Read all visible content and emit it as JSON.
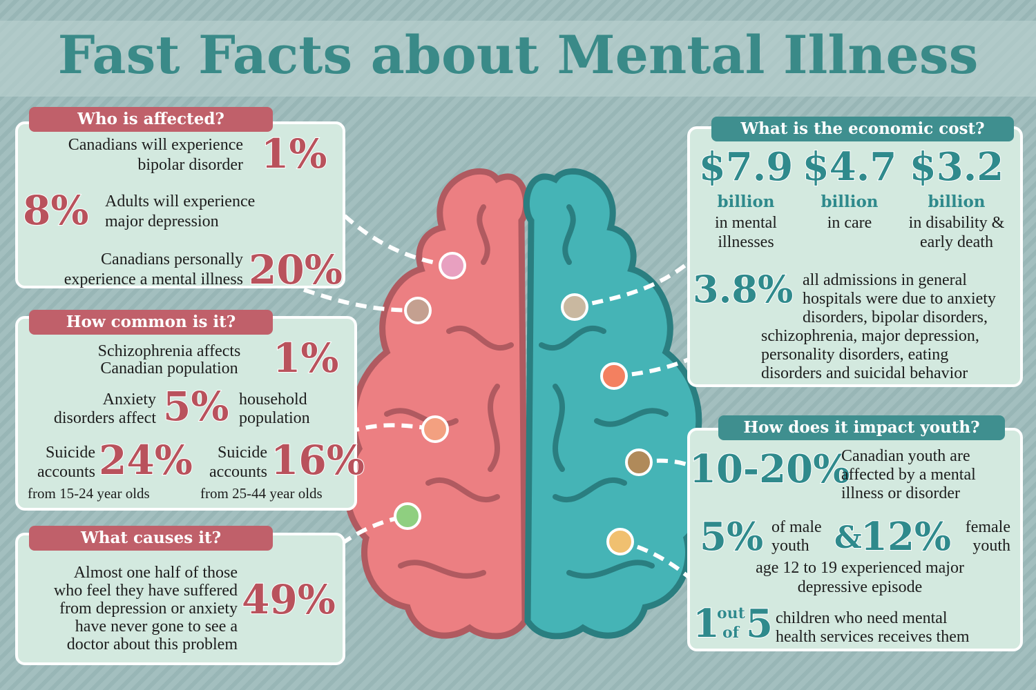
{
  "title": "Fast Facts about Mental Illness",
  "who": {
    "heading": "Who is affected?",
    "facts": [
      {
        "stat": "1%",
        "lines": [
          "Canadians will experience",
          "bipolar disorder"
        ]
      },
      {
        "stat": "8%",
        "lines": [
          "Adults will experience",
          "major depression"
        ]
      },
      {
        "stat": "20%",
        "lines": [
          "Canadians personally",
          "experience a mental illness"
        ]
      }
    ]
  },
  "common": {
    "heading": "How common is it?",
    "facts": [
      {
        "stat": "1%",
        "lines": [
          "Schizophrenia affects",
          "Canadian population"
        ]
      },
      {
        "stat": "5%",
        "before": [
          "Anxiety",
          "disorders affect"
        ],
        "after": [
          "household",
          "population"
        ]
      },
      {
        "stat": "24%",
        "before": [
          "Suicide",
          "accounts"
        ],
        "after": [
          "from 15-24 year olds"
        ]
      },
      {
        "stat": "16%",
        "before": [
          "Suicide",
          "accounts"
        ],
        "after": [
          "from 25-44 year olds"
        ]
      }
    ]
  },
  "causes": {
    "heading": "What causes it?",
    "stat": "49%",
    "lines": [
      "Almost one half  of those",
      "who feel they have suffered",
      "from depression or anxiety",
      "have never gone to see a",
      "doctor about this problem"
    ]
  },
  "cost": {
    "heading": "What is the economic cost?",
    "items": [
      {
        "amount": "$7.9",
        "unit": "billion",
        "lines": [
          "in mental",
          "illnesses"
        ]
      },
      {
        "amount": "$4.7",
        "unit": "billion",
        "lines": [
          "in care"
        ]
      },
      {
        "amount": "$3.2",
        "unit": "billion",
        "lines": [
          "in disability &",
          "early death"
        ]
      }
    ],
    "hospital": {
      "stat": "3.8%",
      "lines": [
        "all admissions in general",
        "hospitals were due to anxiety",
        "disorders, bipolar disorders,",
        "schizophrenia, major depression,",
        "personality disorders, eating",
        "disorders and suicidal behavior"
      ]
    }
  },
  "youth": {
    "heading": "How does it impact youth?",
    "facts": [
      {
        "stat": "10-20%",
        "lines": [
          "Canadian youth are",
          "affected by a mental",
          "illness or disorder"
        ]
      },
      {
        "stat_a": "5%",
        "lines_a": [
          "of male",
          "youth"
        ],
        "joiner": "&",
        "stat_b": "12%",
        "lines_b": [
          "female",
          "youth"
        ],
        "lines_c": [
          "age 12 to 19 experienced major",
          "depressive episode"
        ]
      },
      {
        "num": "1",
        "word_a": "out",
        "word_b": "of",
        "den": "5",
        "lines": [
          "children who need mental",
          "health services receives them"
        ]
      }
    ]
  }
}
